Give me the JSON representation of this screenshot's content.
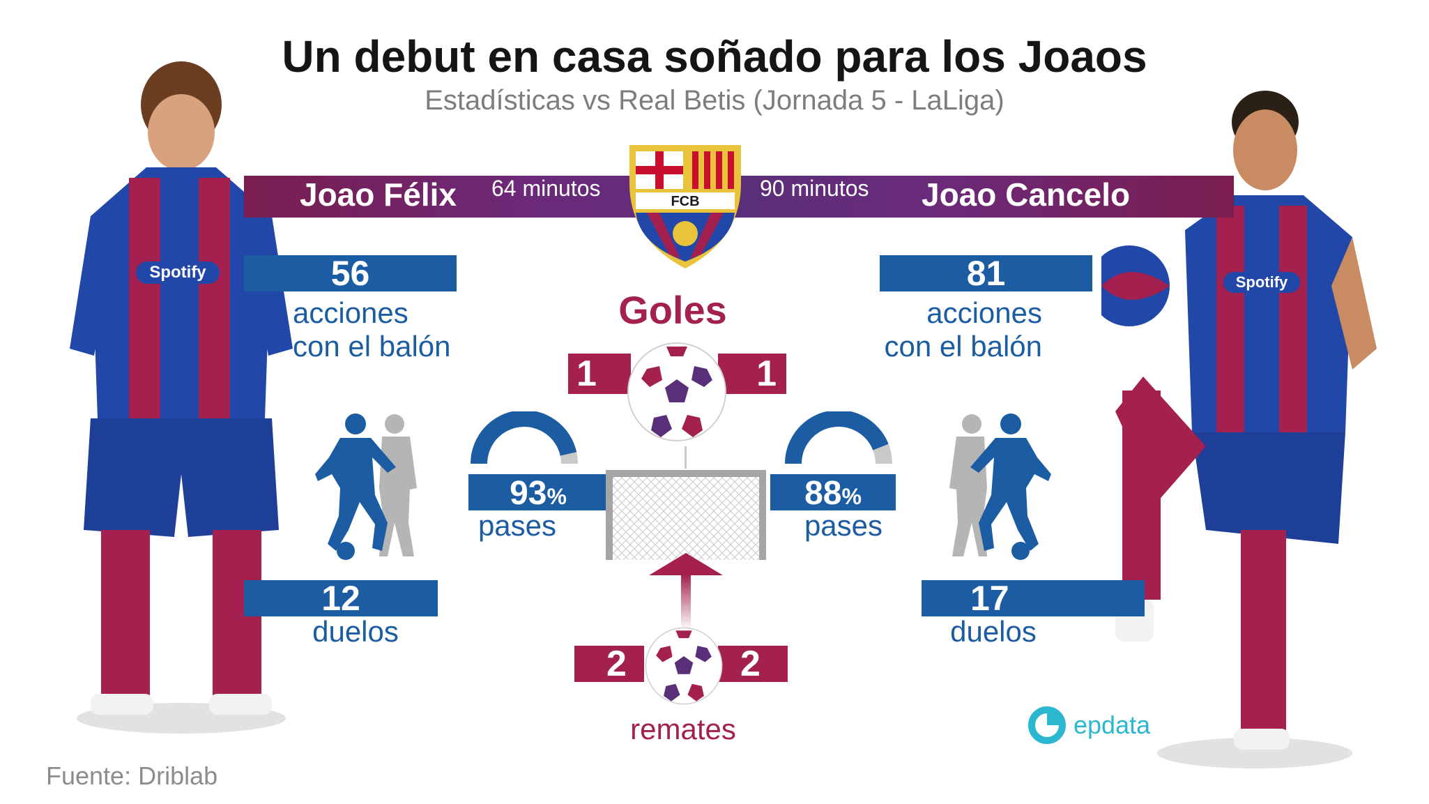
{
  "header": {
    "title": "Un debut en casa soñado para los Joaos",
    "subtitle": "Estadísticas vs Real Betis (Jornada 5 - LaLiga)"
  },
  "club_badge": {
    "text": "FCB",
    "icon": "fc-barcelona-crest-icon"
  },
  "players": {
    "left": {
      "name": "Joao Félix",
      "minutes": "64 minutos",
      "actions_value": "56",
      "actions_label_line1": "acciones",
      "actions_label_line2": "con el balón",
      "passes_value": "93",
      "passes_percent_sign": "%",
      "passes_percent": 93,
      "passes_label": "pases",
      "duels_value": "12",
      "duels_label": "duelos"
    },
    "right": {
      "name": "Joao Cancelo",
      "minutes": "90 minutos",
      "actions_value": "81",
      "actions_label_line1": "acciones",
      "actions_label_line2": "con el balón",
      "passes_value": "88",
      "passes_percent_sign": "%",
      "passes_percent": 88,
      "passes_label": "pases",
      "duels_value": "17",
      "duels_label": "duelos"
    }
  },
  "goals": {
    "label": "Goles",
    "left": "1",
    "right": "1"
  },
  "shots": {
    "label": "remates",
    "left": "2",
    "right": "2"
  },
  "footer": {
    "source": "Fuente: Driblab",
    "brand": "epdata"
  },
  "colors": {
    "blue": "#1b5ca3",
    "maroon": "#a3204f",
    "purple": "#5a2f7a",
    "gray": "#c9c9c9",
    "brand": "#2bb7cf"
  }
}
